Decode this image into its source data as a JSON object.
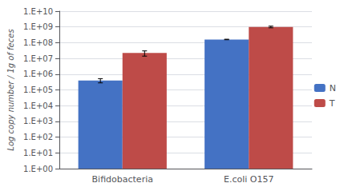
{
  "chart_data": {
    "type": "bar",
    "categories": [
      "Bifidobacteria",
      "E.coli O157"
    ],
    "series": [
      {
        "name": "N",
        "color": "#4472C4",
        "values": [
          400000,
          160000000
        ],
        "errors_plus": [
          120000,
          6000000
        ],
        "errors_minus": [
          120000,
          6000000
        ]
      },
      {
        "name": "T",
        "color": "#BE4B48",
        "values": [
          22000000,
          1000000000
        ],
        "errors_plus": [
          8000000,
          120000000
        ],
        "errors_minus": [
          8000000,
          120000000
        ]
      }
    ],
    "ylabel": "Log copy number / 1g of feces",
    "log": "y",
    "ylim": [
      1,
      10000000000
    ],
    "yticks": [
      {
        "value": 1,
        "label": "1.E+00"
      },
      {
        "value": 10,
        "label": "1.E+01"
      },
      {
        "value": 100,
        "label": "1.E+02"
      },
      {
        "value": 1000,
        "label": "1.E+03"
      },
      {
        "value": 10000,
        "label": "1.E+04"
      },
      {
        "value": 100000,
        "label": "1.E+05"
      },
      {
        "value": 1000000,
        "label": "1.E+06"
      },
      {
        "value": 10000000,
        "label": "1.E+07"
      },
      {
        "value": 100000000,
        "label": "1.E+08"
      },
      {
        "value": 1000000000,
        "label": "1.E+09"
      },
      {
        "value": 10000000000,
        "label": "1.E+10"
      }
    ],
    "grid": true,
    "legend": "right"
  }
}
